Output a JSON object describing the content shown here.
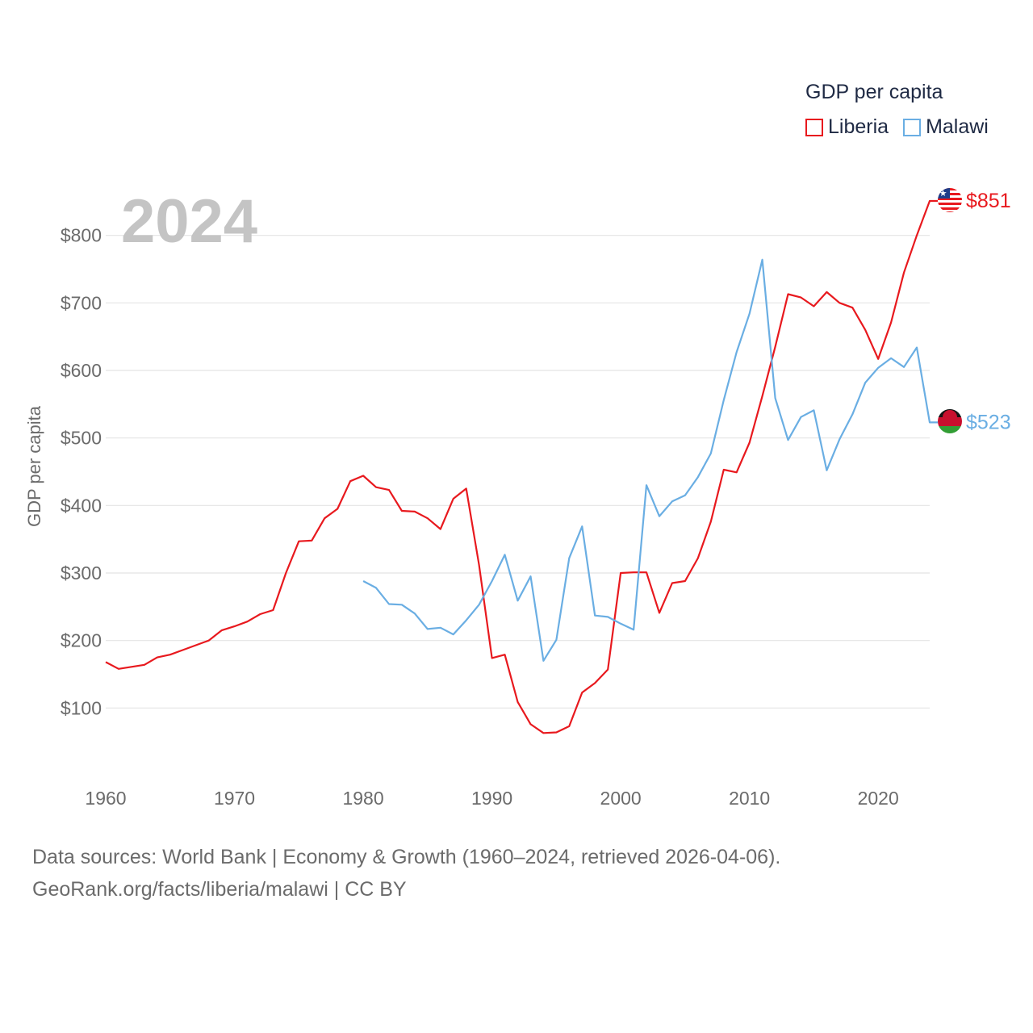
{
  "chart_data": {
    "type": "line",
    "year_label": "2024",
    "ylabel": "GDP per capita",
    "ylim": [
      0,
      900
    ],
    "xlim": [
      1960,
      2024
    ],
    "y_ticks": [
      100,
      200,
      300,
      400,
      500,
      600,
      700,
      800
    ],
    "y_tick_labels": [
      "$100",
      "$200",
      "$300",
      "$400",
      "$500",
      "$600",
      "$700",
      "$800"
    ],
    "x_ticks": [
      1960,
      1970,
      1980,
      1990,
      2000,
      2010,
      2020
    ],
    "x_tick_labels": [
      "1960",
      "1970",
      "1980",
      "1990",
      "2000",
      "2010",
      "2020"
    ],
    "legend": {
      "title": "GDP per capita",
      "placement": "top-right",
      "items": [
        {
          "label": "Liberia",
          "color": "#e8191e"
        },
        {
          "label": "Malawi",
          "color": "#6aaee3"
        }
      ]
    },
    "series": [
      {
        "name": "Liberia",
        "color": "#e8191e",
        "end_label": "$851",
        "x": [
          1960,
          1961,
          1962,
          1963,
          1964,
          1965,
          1966,
          1967,
          1968,
          1969,
          1970,
          1971,
          1972,
          1973,
          1974,
          1975,
          1976,
          1977,
          1978,
          1979,
          1980,
          1981,
          1982,
          1983,
          1984,
          1985,
          1986,
          1987,
          1988,
          1989,
          1990,
          1991,
          1992,
          1993,
          1994,
          1995,
          1996,
          1997,
          1998,
          1999,
          2000,
          2001,
          2002,
          2003,
          2004,
          2005,
          2006,
          2007,
          2008,
          2009,
          2010,
          2011,
          2012,
          2013,
          2014,
          2015,
          2016,
          2017,
          2018,
          2019,
          2020,
          2021,
          2022,
          2023,
          2024
        ],
        "values": [
          168,
          158,
          161,
          164,
          175,
          179,
          186,
          193,
          200,
          215,
          221,
          228,
          239,
          245,
          300,
          347,
          348,
          381,
          395,
          436,
          444,
          427,
          423,
          392,
          391,
          381,
          365,
          410,
          425,
          312,
          174,
          179,
          109,
          76,
          63,
          64,
          73,
          123,
          137,
          157,
          300,
          301,
          301,
          241,
          285,
          288,
          322,
          376,
          453,
          449,
          493,
          562,
          635,
          713,
          708,
          695,
          716,
          700,
          693,
          660,
          617,
          671,
          745,
          800,
          851
        ]
      },
      {
        "name": "Malawi",
        "color": "#6aaee3",
        "end_label": "$523",
        "x": [
          1980,
          1981,
          1982,
          1983,
          1984,
          1985,
          1986,
          1987,
          1988,
          1989,
          1990,
          1991,
          1992,
          1993,
          1994,
          1995,
          1996,
          1997,
          1998,
          1999,
          2000,
          2001,
          2002,
          2003,
          2004,
          2005,
          2006,
          2007,
          2008,
          2009,
          2010,
          2011,
          2012,
          2013,
          2014,
          2015,
          2016,
          2017,
          2018,
          2019,
          2020,
          2021,
          2022,
          2023,
          2024
        ],
        "values": [
          288,
          278,
          254,
          253,
          240,
          217,
          219,
          209,
          230,
          253,
          288,
          327,
          259,
          295,
          170,
          201,
          322,
          369,
          237,
          235,
          225,
          216,
          430,
          384,
          406,
          415,
          442,
          477,
          556,
          627,
          684,
          764,
          559,
          497,
          531,
          541,
          452,
          498,
          535,
          582,
          604,
          618,
          605,
          634,
          523
        ]
      }
    ]
  },
  "footer": {
    "line1": "Data sources: World Bank | Economy & Growth (1960–2024, retrieved 2026-04-06).",
    "line2": "GeoRank.org/facts/liberia/malawi | CC BY"
  }
}
